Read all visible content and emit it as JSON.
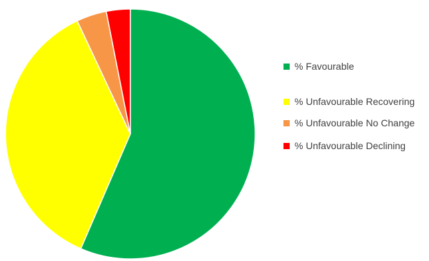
{
  "chart_data": {
    "type": "pie",
    "title": "",
    "legend_position": "right",
    "start_angle_deg": 0,
    "direction": "clockwise",
    "slices": [
      {
        "label": "% Favourable",
        "value": 56.5,
        "color": "#00b050"
      },
      {
        "label": "% Unfavourable Recovering",
        "value": 36.5,
        "color": "#ffff00"
      },
      {
        "label": "% Unfavourable No Change",
        "value": 3.9,
        "color": "#f79646"
      },
      {
        "label": "% Unfavourable Declining",
        "value": 3.1,
        "color": "#ff0000"
      }
    ]
  }
}
